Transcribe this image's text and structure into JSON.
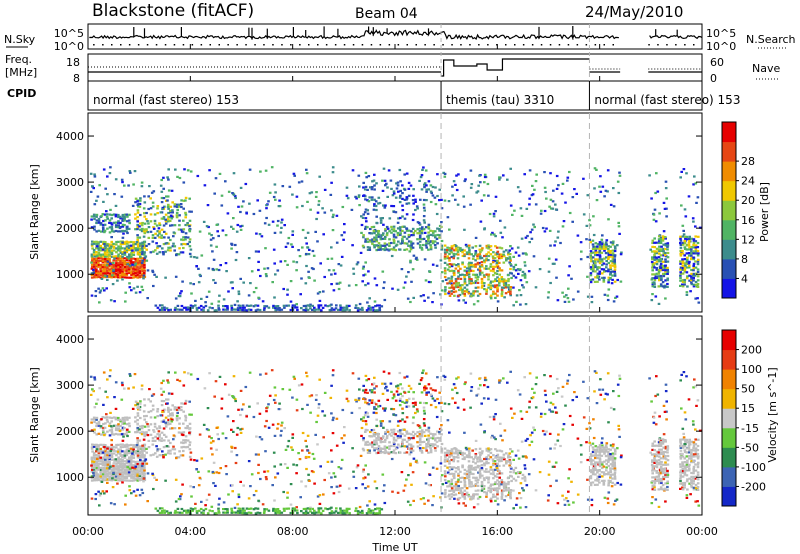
{
  "header": {
    "title": "Blackstone (fitACF)",
    "beam": "Beam 04",
    "date": "24/May/2010"
  },
  "strip_labels": {
    "nsky": "N.Sky",
    "nsearch": "N.Search",
    "freq": "Freq.",
    "freq_unit": "[MHz]",
    "nave": "Nave",
    "cpid": "CPID"
  },
  "strip_ticks": {
    "noise_hi": "10^5",
    "noise_lo": "10^0",
    "freq_hi": "18",
    "freq_lo": "8",
    "nave_hi": "60",
    "nave_lo": "0"
  },
  "cpid_segments": [
    {
      "label": "normal (fast stereo) 153",
      "start": 0,
      "end": 13.8
    },
    {
      "label": "themis (tau) 3310",
      "start": 13.8,
      "end": 19.6
    },
    {
      "label": "normal (fast stereo) 153",
      "start": 19.6,
      "end": 24
    }
  ],
  "chart_data": [
    {
      "type": "heatmap",
      "panel": "power",
      "ylabel": "Slant Range [km]",
      "ylim": [
        180,
        4500
      ],
      "yticks": [
        1000,
        2000,
        3000,
        4000
      ],
      "xlabel": "Time UT",
      "xlim": [
        0,
        24
      ],
      "xticks": [
        "00:00",
        "04:00",
        "08:00",
        "12:00",
        "16:00",
        "20:00",
        "00:00"
      ],
      "colorbar": {
        "label": "Power [dB]",
        "ticks": [
          "4",
          "8",
          "12",
          "16",
          "20",
          "24",
          "28"
        ],
        "colors": [
          "#1414e6",
          "#2850b4",
          "#3c8c8c",
          "#50b464",
          "#8cc83c",
          "#f0c800",
          "#f08c00",
          "#e64614",
          "#e60000"
        ]
      },
      "data_gaps": [
        [
          20.8,
          21.9
        ],
        [
          22.6,
          23.1
        ]
      ],
      "dashed_lines": [
        13.8,
        19.6
      ]
    },
    {
      "type": "heatmap",
      "panel": "velocity",
      "ylabel": "Slant Range [km]",
      "ylim": [
        180,
        4500
      ],
      "yticks": [
        1000,
        2000,
        3000,
        4000
      ],
      "xlabel": "Time UT",
      "xlim": [
        0,
        24
      ],
      "xticks": [
        "00:00",
        "04:00",
        "08:00",
        "12:00",
        "16:00",
        "20:00",
        "00:00"
      ],
      "colorbar": {
        "label": "Velocity [m s^-1]",
        "ticks": [
          "200",
          "100",
          "50",
          "15",
          "-15",
          "-50",
          "-100",
          "-200"
        ],
        "colors": [
          "#1428c8",
          "#3c64b4",
          "#2d8c50",
          "#64c83c",
          "#c8c8c8",
          "#f0b400",
          "#f08200",
          "#e63c14",
          "#e60000"
        ]
      },
      "data_gaps": [
        [
          20.8,
          21.9
        ],
        [
          22.6,
          23.1
        ]
      ],
      "dashed_lines": [
        13.8,
        19.6
      ]
    }
  ],
  "colors": {
    "gray_scatter": "#bebebe",
    "dashed": "#b4b4b4"
  }
}
